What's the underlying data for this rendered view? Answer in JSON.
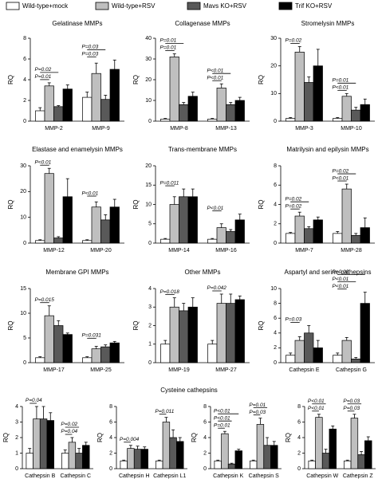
{
  "group_title": "Cysteine cathepsins",
  "chart_data": [
    {
      "type": "bar",
      "title": "Gelatinase MMPs",
      "ylabel": "RQ",
      "categories": [
        "MMP-2",
        "MMP-9"
      ],
      "ylim": [
        0,
        8
      ],
      "yticks": [
        0,
        2,
        4,
        6,
        8
      ],
      "series": [
        {
          "name": "Wild-type+mock",
          "color": "#ffffff",
          "values": [
            1.0,
            2.3
          ],
          "errors": [
            0.3,
            0.5
          ]
        },
        {
          "name": "Wild-type+RSV",
          "color": "#bfbfbf",
          "values": [
            3.4,
            4.6
          ],
          "errors": [
            0.3,
            1.0
          ]
        },
        {
          "name": "Mavs KO+RSV",
          "color": "#595959",
          "values": [
            1.4,
            2.1
          ],
          "errors": [
            0.1,
            0.4
          ]
        },
        {
          "name": "Trif KO+RSV",
          "color": "#000000",
          "values": [
            3.1,
            5.0
          ],
          "errors": [
            0.4,
            0.9
          ]
        }
      ],
      "annotations": [
        [
          "P=0.01",
          "P=0.02"
        ],
        [
          "P=0.03",
          "P=0.03"
        ]
      ]
    },
    {
      "type": "bar",
      "title": "Collagenase MMPs",
      "ylabel": "RQ",
      "categories": [
        "MMP-8",
        "MMP-13"
      ],
      "ylim": [
        0,
        40
      ],
      "yticks": [
        0,
        10,
        20,
        30,
        40
      ],
      "series": [
        {
          "name": "Wild-type+mock",
          "color": "#ffffff",
          "values": [
            1,
            1
          ],
          "errors": [
            0.3,
            0.3
          ]
        },
        {
          "name": "Wild-type+RSV",
          "color": "#bfbfbf",
          "values": [
            31,
            16
          ],
          "errors": [
            1.5,
            2
          ]
        },
        {
          "name": "Mavs KO+RSV",
          "color": "#595959",
          "values": [
            8,
            8
          ],
          "errors": [
            1,
            1
          ]
        },
        {
          "name": "Trif KO+RSV",
          "color": "#000000",
          "values": [
            12,
            10
          ],
          "errors": [
            2,
            1.5
          ]
        }
      ],
      "annotations": [
        [
          "P=0.01",
          "P=0.01"
        ],
        [
          "P<0.01",
          "P<0.01"
        ]
      ]
    },
    {
      "type": "bar",
      "title": "Stromelysin MMPs",
      "ylabel": "RQ",
      "categories": [
        "MMP-3",
        "MMP-10"
      ],
      "ylim": [
        0,
        30
      ],
      "yticks": [
        0,
        10,
        20,
        30
      ],
      "series": [
        {
          "name": "Wild-type+mock",
          "color": "#ffffff",
          "values": [
            1,
            1
          ],
          "errors": [
            0.3,
            0.3
          ]
        },
        {
          "name": "Wild-type+RSV",
          "color": "#bfbfbf",
          "values": [
            25,
            9
          ],
          "errors": [
            2,
            1
          ]
        },
        {
          "name": "Mavs KO+RSV",
          "color": "#595959",
          "values": [
            14,
            4
          ],
          "errors": [
            2,
            1
          ]
        },
        {
          "name": "Trif KO+RSV",
          "color": "#000000",
          "values": [
            20,
            6
          ],
          "errors": [
            6,
            2
          ]
        }
      ],
      "annotations": [
        [
          "P=0.02"
        ],
        [
          "P<0.01",
          "P=0.01"
        ]
      ]
    },
    {
      "type": "bar",
      "title": "Elastase and enamelysin MMPs",
      "ylabel": "RQ",
      "categories": [
        "MMP-12",
        "MMP-20"
      ],
      "ylim": [
        0,
        30
      ],
      "yticks": [
        0,
        10,
        20,
        30
      ],
      "series": [
        {
          "name": "Wild-type+mock",
          "color": "#ffffff",
          "values": [
            1,
            1
          ],
          "errors": [
            0.3,
            0.3
          ]
        },
        {
          "name": "Wild-type+RSV",
          "color": "#bfbfbf",
          "values": [
            27,
            14
          ],
          "errors": [
            2,
            2
          ]
        },
        {
          "name": "Mavs KO+RSV",
          "color": "#595959",
          "values": [
            2,
            9
          ],
          "errors": [
            0.5,
            2
          ]
        },
        {
          "name": "Trif KO+RSV",
          "color": "#000000",
          "values": [
            18,
            14
          ],
          "errors": [
            7,
            3
          ]
        }
      ],
      "annotations": [
        [
          "P<0.01"
        ],
        [
          "P<0.01"
        ]
      ]
    },
    {
      "type": "bar",
      "title": "Trans-membrane MMPs",
      "ylabel": "RQ",
      "categories": [
        "MMP-14",
        "MMP-16"
      ],
      "ylim": [
        0,
        20
      ],
      "yticks": [
        0,
        5,
        10,
        15,
        20
      ],
      "series": [
        {
          "name": "Wild-type+mock",
          "color": "#ffffff",
          "values": [
            1,
            1
          ],
          "errors": [
            0.2,
            0.2
          ]
        },
        {
          "name": "Wild-type+RSV",
          "color": "#bfbfbf",
          "values": [
            10,
            4
          ],
          "errors": [
            2,
            1
          ]
        },
        {
          "name": "Mavs KO+RSV",
          "color": "#595959",
          "values": [
            12,
            3
          ],
          "errors": [
            2,
            0.5
          ]
        },
        {
          "name": "Trif KO+RSV",
          "color": "#000000",
          "values": [
            12,
            6
          ],
          "errors": [
            2,
            1.5
          ]
        }
      ],
      "annotations": [
        [
          "P=0.011"
        ],
        [
          "P<0.01"
        ]
      ]
    },
    {
      "type": "bar",
      "title": "Matrilysin and epilysin MMPs",
      "ylabel": "RQ",
      "categories": [
        "MMP-7",
        "MMP-28"
      ],
      "ylim": [
        0,
        8
      ],
      "yticks": [
        0,
        2,
        4,
        6,
        8
      ],
      "series": [
        {
          "name": "Wild-type+mock",
          "color": "#ffffff",
          "values": [
            1,
            1
          ],
          "errors": [
            0.1,
            0.2
          ]
        },
        {
          "name": "Wild-type+RSV",
          "color": "#bfbfbf",
          "values": [
            2.8,
            5.6
          ],
          "errors": [
            0.4,
            0.5
          ]
        },
        {
          "name": "Mavs KO+RSV",
          "color": "#595959",
          "values": [
            1.5,
            0.8
          ],
          "errors": [
            0.2,
            0.2
          ]
        },
        {
          "name": "Trif KO+RSV",
          "color": "#000000",
          "values": [
            2.4,
            1.6
          ],
          "errors": [
            0.3,
            1.0
          ]
        }
      ],
      "annotations": [
        [
          "P=0.02",
          "P=0.02"
        ],
        [
          "P<0.01",
          "P=0.02"
        ]
      ]
    },
    {
      "type": "bar",
      "title": "Membrane GPI MMPs",
      "ylabel": "RQ",
      "categories": [
        "MMP-17",
        "MMP-25"
      ],
      "ylim": [
        0,
        15
      ],
      "yticks": [
        0,
        5,
        10,
        15
      ],
      "series": [
        {
          "name": "Wild-type+mock",
          "color": "#ffffff",
          "values": [
            1,
            1
          ],
          "errors": [
            0.2,
            0.2
          ]
        },
        {
          "name": "Wild-type+RSV",
          "color": "#bfbfbf",
          "values": [
            9.5,
            2.8
          ],
          "errors": [
            2,
            0.5
          ]
        },
        {
          "name": "Mavs KO+RSV",
          "color": "#595959",
          "values": [
            7.5,
            3.2
          ],
          "errors": [
            1,
            0.4
          ]
        },
        {
          "name": "Trif KO+RSV",
          "color": "#000000",
          "values": [
            5.7,
            4
          ],
          "errors": [
            0.3,
            0.3
          ]
        }
      ],
      "annotations": [
        [
          "P=0.015"
        ],
        [
          "P=0.031"
        ]
      ]
    },
    {
      "type": "bar",
      "title": "Other MMPs",
      "ylabel": "RQ",
      "categories": [
        "MMP-19",
        "MMP-27"
      ],
      "ylim": [
        0,
        4
      ],
      "yticks": [
        0,
        1,
        2,
        3,
        4
      ],
      "series": [
        {
          "name": "Wild-type+mock",
          "color": "#ffffff",
          "values": [
            1,
            1
          ],
          "errors": [
            0.2,
            0.2
          ]
        },
        {
          "name": "Wild-type+RSV",
          "color": "#bfbfbf",
          "values": [
            3,
            3.2
          ],
          "errors": [
            0.5,
            0.5
          ]
        },
        {
          "name": "Mavs KO+RSV",
          "color": "#595959",
          "values": [
            2.8,
            3.2
          ],
          "errors": [
            0.4,
            0.5
          ]
        },
        {
          "name": "Trif KO+RSV",
          "color": "#000000",
          "values": [
            3,
            3.4
          ],
          "errors": [
            0.5,
            0.2
          ]
        }
      ],
      "annotations": [
        [
          "P=0.018"
        ],
        [
          "P=0.042"
        ]
      ]
    },
    {
      "type": "bar",
      "title": "Aspartyl and serine cathepsins",
      "ylabel": "RQ",
      "categories": [
        "Cathepsin E",
        "Cathepsin G"
      ],
      "ylim": [
        0,
        10
      ],
      "yticks": [
        0,
        2,
        4,
        6,
        8,
        10
      ],
      "series": [
        {
          "name": "Wild-type+mock",
          "color": "#ffffff",
          "values": [
            1,
            1
          ],
          "errors": [
            0.3,
            0.3
          ]
        },
        {
          "name": "Wild-type+RSV",
          "color": "#bfbfbf",
          "values": [
            3,
            3
          ],
          "errors": [
            0.5,
            0.4
          ]
        },
        {
          "name": "Mavs KO+RSV",
          "color": "#595959",
          "values": [
            4,
            0.5
          ],
          "errors": [
            1,
            0.2
          ]
        },
        {
          "name": "Trif KO+RSV",
          "color": "#000000",
          "values": [
            2,
            8
          ],
          "errors": [
            1,
            1.5
          ]
        }
      ],
      "annotations": [
        [
          "P=0.03"
        ],
        [
          "P<0.01",
          "P<0.01",
          "P=0.03"
        ]
      ]
    },
    {
      "type": "bar",
      "ylabel": "RQ",
      "categories": [
        "Cathepsin B",
        "Cathepsin C"
      ],
      "ylim": [
        0,
        4
      ],
      "yticks": [
        0,
        1,
        2,
        3,
        4
      ],
      "series": [
        {
          "name": "Wild-type+mock",
          "color": "#ffffff",
          "values": [
            1,
            1
          ],
          "errors": [
            0.3,
            0.2
          ]
        },
        {
          "name": "Wild-type+RSV",
          "color": "#bfbfbf",
          "values": [
            3.2,
            1.7
          ],
          "errors": [
            0.8,
            0.3
          ]
        },
        {
          "name": "Mavs KO+RSV",
          "color": "#595959",
          "values": [
            3.2,
            1
          ],
          "errors": [
            0.8,
            0.3
          ]
        },
        {
          "name": "Trif KO+RSV",
          "color": "#000000",
          "values": [
            3.1,
            1.5
          ],
          "errors": [
            0.5,
            0.2
          ]
        }
      ],
      "annotations": [
        [
          "P=0.04"
        ],
        [
          "P=0.04",
          "P=0.02"
        ]
      ]
    },
    {
      "type": "bar",
      "ylabel": "RQ",
      "categories": [
        "Cathepsin H",
        "Cathepsin L1"
      ],
      "ylim": [
        0,
        8
      ],
      "yticks": [
        0,
        2,
        4,
        6,
        8
      ],
      "series": [
        {
          "name": "Wild-type+mock",
          "color": "#ffffff",
          "values": [
            1,
            1
          ],
          "errors": [
            0.1,
            0.1
          ]
        },
        {
          "name": "Wild-type+RSV",
          "color": "#bfbfbf",
          "values": [
            2.6,
            6
          ],
          "errors": [
            0.4,
            0.6
          ]
        },
        {
          "name": "Mavs KO+RSV",
          "color": "#595959",
          "values": [
            2.5,
            4
          ],
          "errors": [
            0.4,
            1
          ]
        },
        {
          "name": "Trif KO+RSV",
          "color": "#000000",
          "values": [
            2.5,
            3.5
          ],
          "errors": [
            0.3,
            0.5
          ]
        }
      ],
      "annotations": [
        [
          "P=0.004"
        ],
        [
          "P=0.011"
        ]
      ]
    },
    {
      "type": "bar",
      "ylabel": "RQ",
      "categories": [
        "Cathepsin K",
        "Cathepsin S"
      ],
      "ylim": [
        0,
        8
      ],
      "yticks": [
        0,
        2,
        4,
        6,
        8
      ],
      "series": [
        {
          "name": "Wild-type+mock",
          "color": "#ffffff",
          "values": [
            1,
            1
          ],
          "errors": [
            0.1,
            0.1
          ]
        },
        {
          "name": "Wild-type+RSV",
          "color": "#bfbfbf",
          "values": [
            4.5,
            5.7
          ],
          "errors": [
            0.3,
            0.8
          ]
        },
        {
          "name": "Mavs KO+RSV",
          "color": "#595959",
          "values": [
            0.6,
            3
          ],
          "errors": [
            0.1,
            1
          ]
        },
        {
          "name": "Trif KO+RSV",
          "color": "#000000",
          "values": [
            2.3,
            3
          ],
          "errors": [
            0.2,
            0.5
          ]
        }
      ],
      "annotations": [
        [
          "P=0.01",
          "P<0.01",
          "P<0.01"
        ],
        [
          "P=0.03",
          "P=0.01"
        ]
      ]
    },
    {
      "type": "bar",
      "ylabel": "RQ",
      "categories": [
        "Cathepsin W",
        "Cathepsin Z"
      ],
      "ylim": [
        0,
        8
      ],
      "yticks": [
        0,
        2,
        4,
        6,
        8
      ],
      "series": [
        {
          "name": "Wild-type+mock",
          "color": "#ffffff",
          "values": [
            1,
            1
          ],
          "errors": [
            0.1,
            0.1
          ]
        },
        {
          "name": "Wild-type+RSV",
          "color": "#bfbfbf",
          "values": [
            6.6,
            6.5
          ],
          "errors": [
            0.4,
            0.5
          ]
        },
        {
          "name": "Mavs KO+RSV",
          "color": "#595959",
          "values": [
            2,
            1.8
          ],
          "errors": [
            0.5,
            0.4
          ]
        },
        {
          "name": "Trif KO+RSV",
          "color": "#000000",
          "values": [
            5.1,
            3.6
          ],
          "errors": [
            0.4,
            0.5
          ]
        }
      ],
      "annotations": [
        [
          "P<0.01",
          "P<0.01"
        ],
        [
          "P=0.03",
          "P=0.03"
        ]
      ]
    }
  ]
}
